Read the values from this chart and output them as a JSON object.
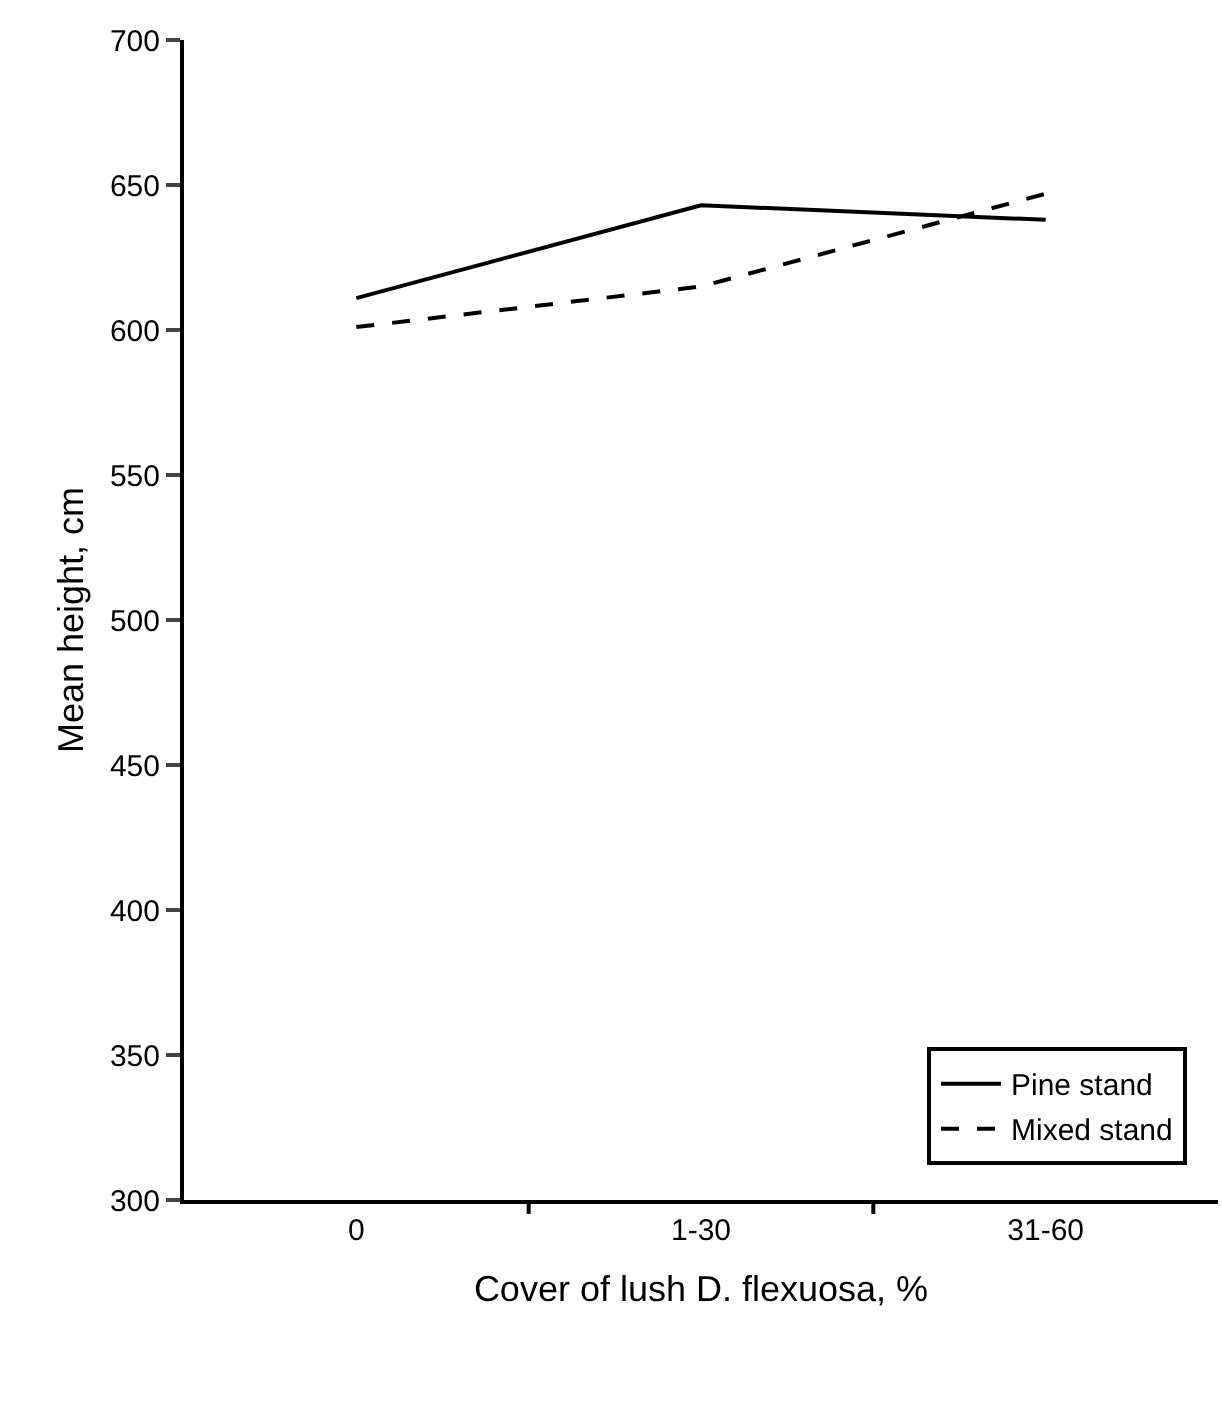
{
  "chart_data": {
    "type": "line",
    "xlabel": "Cover of lush D. flexuosa, %",
    "ylabel": "Mean height, cm",
    "categories": [
      "0",
      "1-30",
      "31-60"
    ],
    "series": [
      {
        "name": "Pine stand",
        "color": "#000000",
        "line_style": "solid",
        "values": [
          611,
          643,
          638
        ]
      },
      {
        "name": "Mixed stand",
        "color": "#000000",
        "line_style": "dashed",
        "values": [
          601,
          615,
          647
        ]
      }
    ],
    "ylim": [
      300,
      700
    ],
    "yticks": [
      300,
      350,
      400,
      450,
      500,
      550,
      600,
      650,
      700
    ],
    "legend": "bottom right",
    "marker": "none"
  }
}
